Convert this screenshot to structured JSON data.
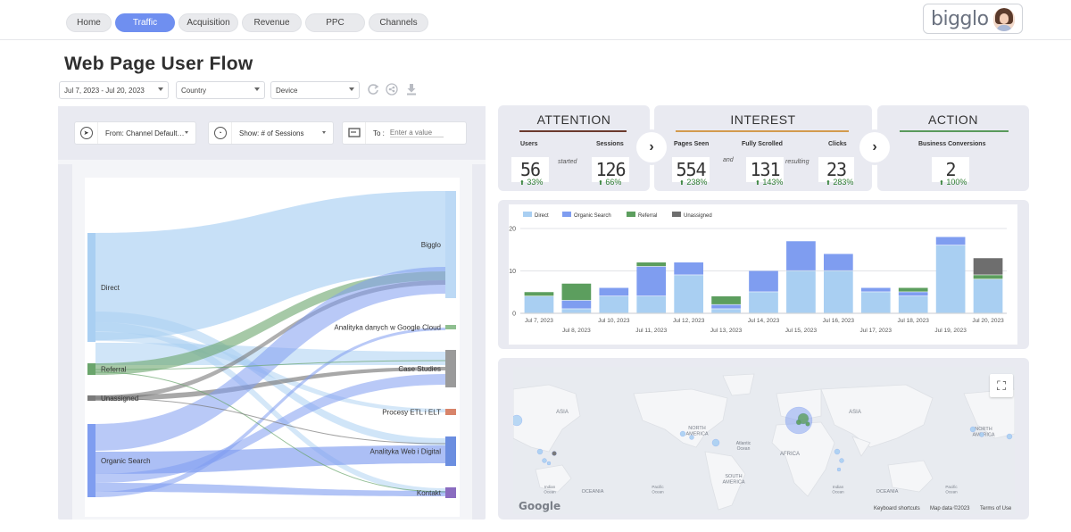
{
  "nav": {
    "tabs": [
      {
        "label": "Home",
        "active": false
      },
      {
        "label": "Traffic",
        "active": true
      },
      {
        "label": "Acquisition",
        "active": false
      },
      {
        "label": "Revenue",
        "active": false
      },
      {
        "label": "PPC",
        "active": false
      },
      {
        "label": "Channels",
        "active": false
      }
    ],
    "brand": "bigglo"
  },
  "page_title": "Web Page User Flow",
  "filters": {
    "date_range": "Jul 7, 2023 - Jul 20, 2023",
    "country": "Country",
    "device": "Device"
  },
  "flow_controls": {
    "from_label": "From: Channel Default…",
    "show_label": "Show: # of Sessions",
    "to_label": "To :",
    "to_placeholder": "Enter a value"
  },
  "sankey": {
    "sources": [
      "Direct",
      "Referral",
      "Unassigned",
      "Organic Search"
    ],
    "targets": [
      "Bigglo",
      "Analityka danych w Google Cloud",
      "Case Studies",
      "Procesy ETL i ELT",
      "Analityka Web i Digital",
      "Kontakt"
    ],
    "colors": {
      "Direct": "#a9cff2",
      "Referral": "#6aa56c",
      "Unassigned": "#7a7a7a",
      "Organic Search": "#7f9df0",
      "Bigglo": "#bcd9f5",
      "Analityka danych w Google Cloud": "#8fbf90",
      "Case Studies": "#9a9a9a",
      "Procesy ETL i ELT": "#d8846a",
      "Analityka Web i Digital": "#6b8ee0",
      "Kontakt": "#8a6cc0"
    }
  },
  "funnel": {
    "attention": {
      "title": "ATTENTION",
      "color": "#6b3a2e",
      "users_label": "Users",
      "users_value": "56",
      "users_delta": "33%",
      "connector": "started",
      "sessions_label": "Sessions",
      "sessions_value": "126",
      "sessions_delta": "66%"
    },
    "interest": {
      "title": "INTEREST",
      "color": "#d39b4e",
      "pages_label": "Pages  Seen",
      "pages_value": "554",
      "pages_delta": "238%",
      "connector1": "and",
      "scrolled_label": "Fully Scrolled",
      "scrolled_value": "131",
      "scrolled_delta": "143%",
      "connector2": "resulting",
      "clicks_label": "Clicks",
      "clicks_value": "23",
      "clicks_delta": "283%"
    },
    "action": {
      "title": "ACTION",
      "color": "#5a9a5c",
      "conv_label": "Business Conversions",
      "conv_value": "2",
      "conv_delta": "100%"
    },
    "arrow_glyph": "›",
    "delta_glyph": "⬆"
  },
  "chart_data": {
    "type": "bar",
    "stacked": true,
    "categories": [
      "Jul 7, 2023",
      "Jul 8, 2023",
      "Jul 10, 2023",
      "Jul 11, 2023",
      "Jul 12, 2023",
      "Jul 13, 2023",
      "Jul 14, 2023",
      "Jul 15, 2023",
      "Jul 16, 2023",
      "Jul 17, 2023",
      "Jul 18, 2023",
      "Jul 19, 2023",
      "Jul 20, 2023"
    ],
    "series": [
      {
        "name": "Direct",
        "color": "#a9cff2",
        "values": [
          4,
          1,
          4,
          4,
          9,
          1,
          5,
          10,
          10,
          5,
          4,
          16,
          8
        ]
      },
      {
        "name": "Organic Search",
        "color": "#7f9df0",
        "values": [
          0,
          2,
          2,
          7,
          3,
          1,
          5,
          7,
          4,
          1,
          1,
          2,
          0
        ]
      },
      {
        "name": "Referral",
        "color": "#5c9e5e",
        "values": [
          1,
          4,
          0,
          1,
          0,
          2,
          0,
          0,
          0,
          0,
          1,
          0,
          1
        ]
      },
      {
        "name": "Unassigned",
        "color": "#6e6e6e",
        "values": [
          0,
          0,
          0,
          0,
          0,
          0,
          0,
          0,
          0,
          0,
          0,
          0,
          4
        ]
      }
    ],
    "ylim": [
      0,
      20
    ],
    "yticks": [
      0,
      10,
      20
    ],
    "legend_position": "top-left",
    "grid": true
  },
  "map": {
    "labels": [
      {
        "text": "ASIA"
      },
      {
        "text": "NORTH AMERICA"
      },
      {
        "text": "Atlantic Ocean"
      },
      {
        "text": "AFRICA"
      },
      {
        "text": "SOUTH AMERICA"
      },
      {
        "text": "Indian Ocean"
      },
      {
        "text": "OCEANIA"
      },
      {
        "text": "Pacific Ocean"
      },
      {
        "text": "ASIA"
      },
      {
        "text": "NORTH AMERICA"
      },
      {
        "text": "Indian Ocean"
      },
      {
        "text": "OCEANIA"
      },
      {
        "text": "Pacific Ocean"
      }
    ],
    "fullscreen_glyph": "⛶",
    "google_logo": "Google",
    "footer": [
      "Keyboard shortcuts",
      "Map data ©2023",
      "Terms of Use"
    ]
  }
}
